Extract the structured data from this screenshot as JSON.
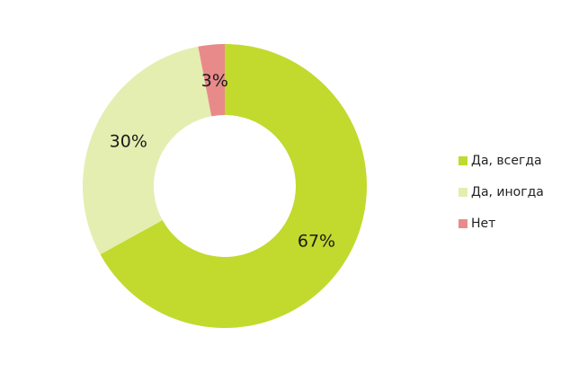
{
  "chart_data": {
    "type": "pie",
    "variant": "donut",
    "categories": [
      "Да, всегда",
      "Да, иногда",
      "Нет"
    ],
    "values": [
      67,
      30,
      3
    ],
    "labels": [
      "67%",
      "30%",
      "3%"
    ],
    "colors": [
      "#c2d92e",
      "#e4eeb0",
      "#e98a8a"
    ],
    "legend_position": "right"
  }
}
